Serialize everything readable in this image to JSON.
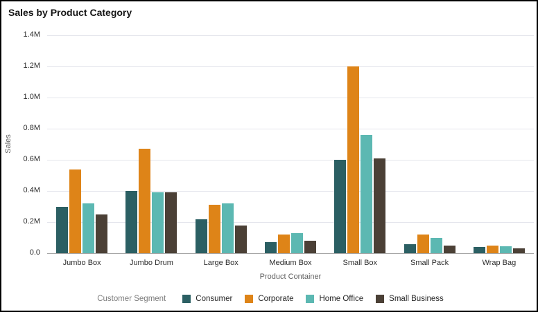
{
  "title": "Sales by Product Category",
  "axes": {
    "x_title": "Product Container",
    "y_title": "Sales"
  },
  "legend": {
    "title": "Customer Segment"
  },
  "chart_data": {
    "type": "bar",
    "title": "Sales by Product Category",
    "xlabel": "Product Container",
    "ylabel": "Sales",
    "units": "millions",
    "categories": [
      "Jumbo Box",
      "Jumbo Drum",
      "Large Box",
      "Medium Box",
      "Small Box",
      "Small Pack",
      "Wrap Bag"
    ],
    "series": [
      {
        "name": "Consumer",
        "color": "#2b5f63",
        "values": [
          0.3,
          0.4,
          0.22,
          0.07,
          0.6,
          0.06,
          0.04
        ]
      },
      {
        "name": "Corporate",
        "color": "#de8418",
        "values": [
          0.54,
          0.67,
          0.31,
          0.12,
          1.2,
          0.12,
          0.05
        ]
      },
      {
        "name": "Home Office",
        "color": "#5cb8b2",
        "values": [
          0.32,
          0.39,
          0.32,
          0.13,
          0.76,
          0.1,
          0.045
        ]
      },
      {
        "name": "Small Business",
        "color": "#4b4036",
        "values": [
          0.25,
          0.39,
          0.18,
          0.08,
          0.61,
          0.05,
          0.03
        ]
      }
    ],
    "ylim": [
      0,
      1.4
    ],
    "ytick_step": 0.2,
    "ytick_labels": [
      "0.0",
      "0.2M",
      "0.4M",
      "0.6M",
      "0.8M",
      "1.0M",
      "1.2M",
      "1.4M"
    ],
    "legend_title": "Customer Segment",
    "legend_position": "bottom",
    "grid": true,
    "colors": {
      "gridline": "#e4e5ec",
      "axis_line": "#a6a6a6",
      "tick_text": "#2b2b2b",
      "axis_title_text": "#5e5e5e",
      "legend_title_text": "#7d7d7d",
      "title_text": "#141414"
    }
  }
}
